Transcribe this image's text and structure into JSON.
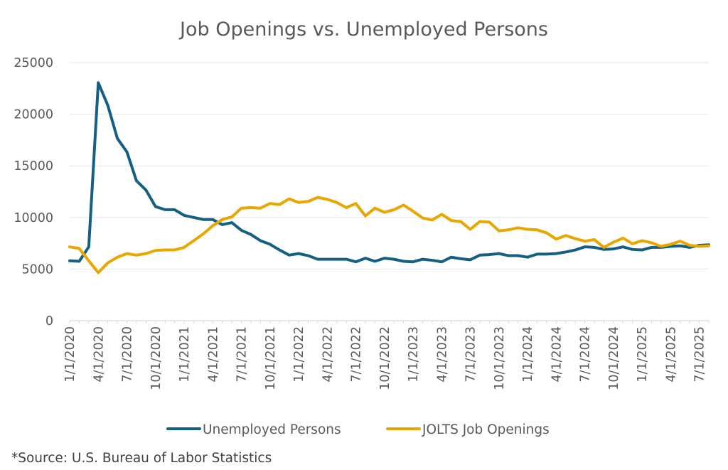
{
  "chart_data": {
    "type": "line",
    "title": "Job Openings vs. Unemployed Persons",
    "xlabel": "",
    "ylabel": "",
    "ylim": [
      0,
      25000
    ],
    "yticks": [
      "0",
      "5000",
      "10000",
      "15000",
      "20000",
      "25000"
    ],
    "xtick_labels": [
      "1/1/2020",
      "4/1/2020",
      "7/1/2020",
      "10/1/2020",
      "1/1/2021",
      "4/1/2021",
      "7/1/2021",
      "10/1/2021",
      "1/1/2022",
      "4/1/2022",
      "7/1/2022",
      "10/1/2022",
      "1/1/2023",
      "4/1/2023",
      "7/1/2023",
      "10/1/2023",
      "1/1/2024",
      "4/1/2024",
      "7/1/2024",
      "10/1/2024",
      "1/1/2025",
      "4/1/2025",
      "7/1/2025"
    ],
    "x_start": "1/1/2020",
    "x_frequency": "monthly",
    "legend_position": "bottom",
    "series": [
      {
        "name": "Unemployed Persons",
        "color": "#156082",
        "values": [
          5800,
          5750,
          7150,
          23050,
          20850,
          17650,
          16350,
          13550,
          12650,
          11050,
          10750,
          10750,
          10200,
          10000,
          9800,
          9800,
          9300,
          9500,
          8750,
          8350,
          7750,
          7400,
          6850,
          6350,
          6500,
          6300,
          5950,
          5950,
          5950,
          5950,
          5700,
          6050,
          5750,
          6050,
          5950,
          5750,
          5700,
          5950,
          5850,
          5700,
          6150,
          6000,
          5900,
          6350,
          6400,
          6500,
          6300,
          6300,
          6150,
          6450,
          6450,
          6500,
          6650,
          6850,
          7150,
          7100,
          6900,
          6950,
          7150,
          6900,
          6850,
          7100,
          7100,
          7200,
          7250,
          7100,
          7300,
          7350
        ]
      },
      {
        "name": "JOLTS Job Openings",
        "color": "#E8A600",
        "values": [
          7150,
          7000,
          5800,
          4650,
          5600,
          6150,
          6500,
          6350,
          6500,
          6800,
          6850,
          6850,
          7100,
          7750,
          8400,
          9200,
          9800,
          10050,
          10900,
          10950,
          10900,
          11350,
          11250,
          11800,
          11450,
          11550,
          11950,
          11750,
          11450,
          10950,
          11350,
          10150,
          10900,
          10500,
          10750,
          11200,
          10600,
          9950,
          9750,
          10300,
          9700,
          9600,
          8850,
          9600,
          9550,
          8700,
          8800,
          9000,
          8850,
          8800,
          8500,
          7900,
          8250,
          7950,
          7700,
          7850,
          7100,
          7600,
          8000,
          7450,
          7750,
          7550,
          7200,
          7400,
          7700,
          7300,
          7200,
          7250
        ]
      }
    ],
    "source": "*Source: U.S. Bureau of Labor Statistics"
  }
}
